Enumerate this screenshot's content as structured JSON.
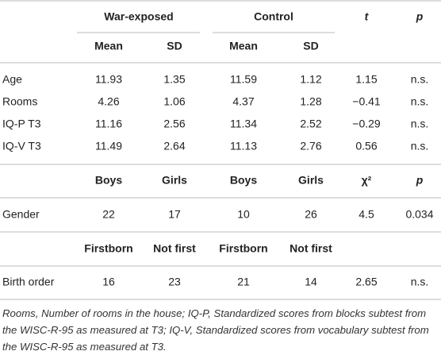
{
  "table": {
    "header": [
      "War-exposed",
      "Control",
      "t",
      "p"
    ],
    "subheader": [
      "Mean",
      "SD",
      "Mean",
      "SD"
    ],
    "rows": [
      [
        "Age",
        "11.93",
        "1.35",
        "11.59",
        "1.12",
        "1.15",
        "n.s."
      ],
      [
        "Rooms",
        "4.26",
        "1.06",
        "4.37",
        "1.28",
        "−0.41",
        "n.s."
      ],
      [
        "IQ-P T3",
        "11.16",
        "2.56",
        "11.34",
        "2.52",
        "−0.29",
        "n.s."
      ],
      [
        "IQ-V T3",
        "11.49",
        "2.64",
        "11.13",
        "2.76",
        "0.56",
        "n.s."
      ]
    ],
    "gender_header": [
      "Boys",
      "Girls",
      "Boys",
      "Girls",
      "χ²",
      "p"
    ],
    "gender_row": [
      "Gender",
      "22",
      "17",
      "10",
      "26",
      "4.5",
      "0.034"
    ],
    "birth_header": [
      "Firstborn",
      "Not first",
      "Firstborn",
      "Not first"
    ],
    "birth_row": [
      "Birth order",
      "16",
      "23",
      "21",
      "14",
      "2.65",
      "n.s."
    ]
  },
  "footnote": "Rooms, Number of rooms in the house; IQ-P, Standardized scores from blocks subtest from the WISC-R-95 as measured at T3; IQ-V, Standardized scores from vocabulary subtest from the WISC-R-95 as measured at T3."
}
